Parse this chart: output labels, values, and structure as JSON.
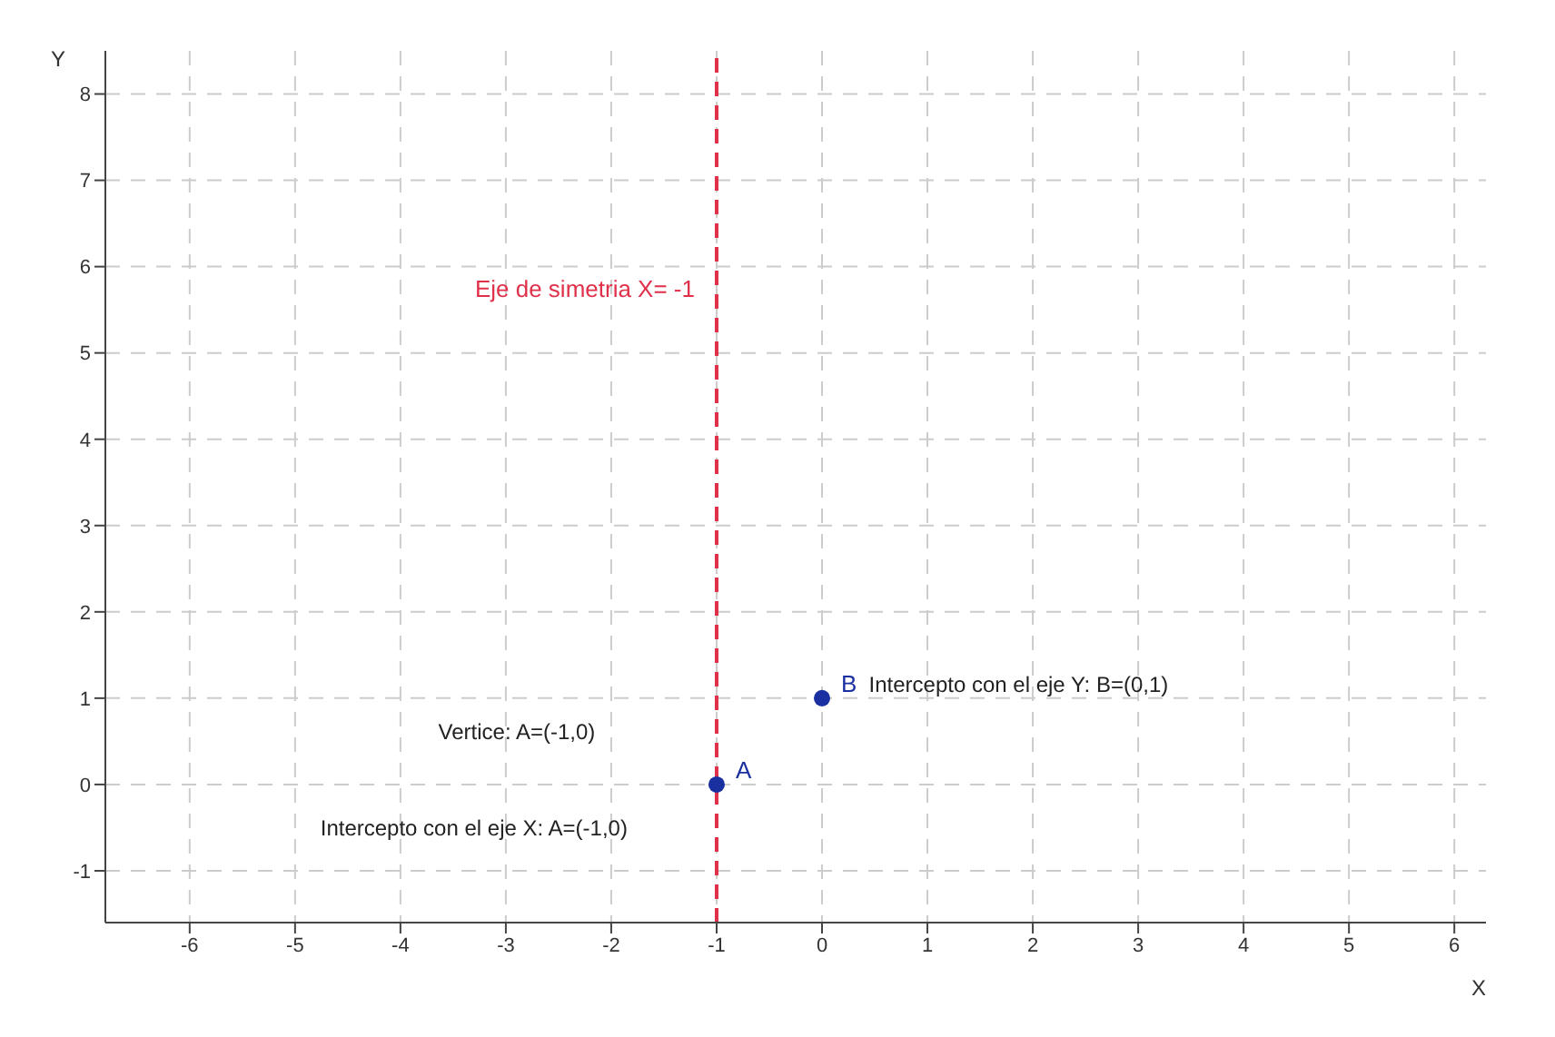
{
  "chart_data": {
    "type": "scatter",
    "xlabel": "X",
    "ylabel": "Y",
    "x": [
      -1,
      0
    ],
    "series": [
      {
        "color": "#1a2fa0",
        "values": [
          0,
          1
        ],
        "value_labels": [
          "A",
          "B"
        ]
      }
    ],
    "xlim": [
      -6.8,
      6.3
    ],
    "ylim": [
      -1.6,
      8.5
    ],
    "xticks": [
      -6,
      -5,
      -4,
      -3,
      -2,
      -1,
      0,
      1,
      2,
      3,
      4,
      5,
      6
    ],
    "yticks": [
      -1,
      0,
      1,
      2,
      3,
      4,
      5,
      6,
      7,
      8
    ],
    "grid": true,
    "marker": "circle",
    "ref_lines": [
      {
        "axis": "x",
        "value": -1,
        "label": "Eje de simetria X= -1",
        "color": "#e0304a",
        "line_style": "dashed"
      }
    ],
    "annotations": [
      "Vertice: A=(-1,0)",
      "Intercepto con el eje X: A=(-1,0)",
      "Intercepto con el eje Y: B=(0,1)"
    ]
  }
}
